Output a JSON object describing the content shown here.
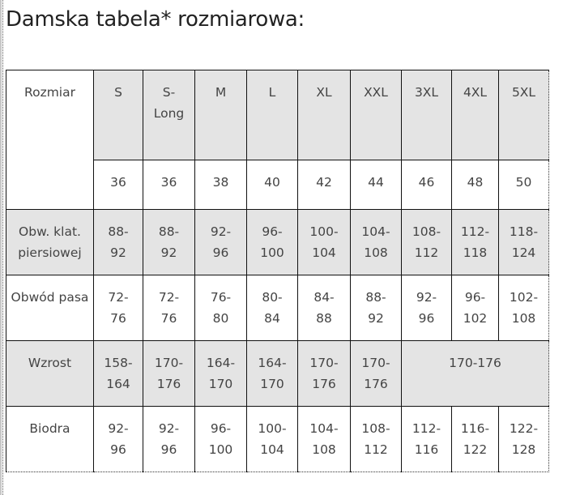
{
  "title": "Damska tabela* rozmiarowa:",
  "table": {
    "corner_label": "Rozmiar",
    "sizes": [
      "S",
      "S-\nLong",
      "M",
      "L",
      "XL",
      "XXL",
      "3XL",
      "4XL",
      "5XL"
    ],
    "numeric_sizes": [
      "36",
      "36",
      "38",
      "40",
      "42",
      "44",
      "46",
      "48",
      "50"
    ],
    "rows": [
      {
        "label": "Obw. klat. piersiowej",
        "values": [
          "88-\n92",
          "88-\n92",
          "92-\n96",
          "96-\n100",
          "100-\n104",
          "104-\n108",
          "108-\n112",
          "112-\n118",
          "118-\n124"
        ]
      },
      {
        "label": "Obwód pasa",
        "values": [
          "72-\n76",
          "72-\n76",
          "76-\n80",
          "80-\n84",
          "84-\n88",
          "88-\n92",
          "92-\n96",
          "96-\n102",
          "102-\n108"
        ]
      },
      {
        "label": "Wzrost",
        "values": [
          "158-\n164",
          "170-\n176",
          "164-\n170",
          "164-\n170",
          "170-\n176",
          "170-\n176"
        ],
        "merged_value": "170-176"
      },
      {
        "label": "Biodra",
        "values": [
          "92-\n96",
          "92-\n96",
          "96-\n100",
          "100-\n104",
          "104-\n108",
          "108-\n112",
          "112-\n116",
          "116-\n122",
          "122-\n128"
        ]
      }
    ]
  },
  "colors": {
    "shaded_row": "#e4e4e4",
    "border": "#111111"
  }
}
